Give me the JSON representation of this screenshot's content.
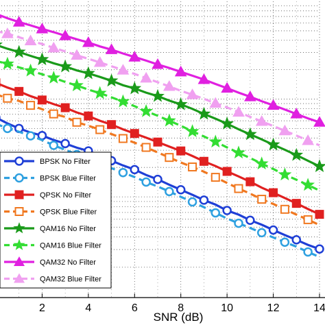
{
  "chart_data": {
    "type": "line",
    "xlabel": "SNR (dB)",
    "ylabel": "",
    "title": "",
    "xlim": [
      0,
      14
    ],
    "ylim": [
      0,
      1
    ],
    "y_scale": "log",
    "grid": true,
    "legend_position": "bottom-left",
    "x_ticks": [
      2,
      4,
      6,
      8,
      10,
      12,
      14
    ],
    "x_tick_labels": [
      "2",
      "4",
      "6",
      "8",
      "10",
      "12",
      "14"
    ],
    "x": [
      0,
      0.5,
      1,
      1.5,
      2,
      2.5,
      3,
      3.5,
      4,
      4.5,
      5,
      5.5,
      6,
      6.5,
      7,
      7.5,
      8,
      8.5,
      9,
      9.5,
      10,
      10.5,
      11,
      11.5,
      12,
      12.5,
      13,
      13.5,
      14
    ],
    "series": [
      {
        "name": "BPSK No Filter",
        "color": "#1f3fd6",
        "line": "solid",
        "marker": "circle",
        "values": [
          0.608,
          0.588,
          0.571,
          0.557,
          0.547,
          0.532,
          0.52,
          0.506,
          0.495,
          0.477,
          0.462,
          0.446,
          0.432,
          0.414,
          0.399,
          0.381,
          0.364,
          0.347,
          0.329,
          0.314,
          0.294,
          0.28,
          0.261,
          0.246,
          0.228,
          0.211,
          0.195,
          0.178,
          0.164
        ]
      },
      {
        "name": "BPSK Blue Filter",
        "color": "#2ea0e0",
        "line": "dashed",
        "marker": "circle",
        "values": [
          0.587,
          0.571,
          0.56,
          0.546,
          0.532,
          0.514,
          0.499,
          0.483,
          0.468,
          0.451,
          0.437,
          0.422,
          0.407,
          0.39,
          0.375,
          0.358,
          0.34,
          0.323,
          0.305,
          0.286,
          0.267,
          0.251,
          0.235,
          0.219,
          0.203,
          0.187,
          0.172,
          0.154,
          0.137
        ]
      },
      {
        "name": "QPSK No Filter",
        "color": "#e02020",
        "line": "solid",
        "marker": "square",
        "values": [
          0.725,
          0.709,
          0.696,
          0.68,
          0.667,
          0.653,
          0.641,
          0.625,
          0.613,
          0.597,
          0.584,
          0.568,
          0.554,
          0.54,
          0.525,
          0.51,
          0.495,
          0.478,
          0.46,
          0.444,
          0.426,
          0.409,
          0.391,
          0.371,
          0.354,
          0.336,
          0.318,
          0.299,
          0.281
        ]
      },
      {
        "name": "QPSK Blue Filter",
        "color": "#f07820",
        "line": "dashed",
        "marker": "square",
        "values": [
          0.686,
          0.673,
          0.664,
          0.649,
          0.636,
          0.62,
          0.61,
          0.592,
          0.58,
          0.567,
          0.552,
          0.537,
          0.523,
          0.507,
          0.49,
          0.473,
          0.456,
          0.441,
          0.425,
          0.406,
          0.387,
          0.368,
          0.351,
          0.332,
          0.316,
          0.298,
          0.28,
          0.263,
          0.245
        ]
      },
      {
        "name": "QAM16 No Filter",
        "color": "#1a9a1a",
        "line": "solid",
        "marker": "star",
        "values": [
          0.853,
          0.84,
          0.829,
          0.816,
          0.804,
          0.791,
          0.78,
          0.767,
          0.757,
          0.745,
          0.732,
          0.717,
          0.706,
          0.692,
          0.68,
          0.665,
          0.652,
          0.637,
          0.62,
          0.604,
          0.587,
          0.568,
          0.551,
          0.534,
          0.516,
          0.499,
          0.481,
          0.462,
          0.443
        ]
      },
      {
        "name": "QAM16 Blue Filter",
        "color": "#33dd33",
        "line": "dashed",
        "marker": "star",
        "values": [
          0.799,
          0.789,
          0.777,
          0.766,
          0.754,
          0.742,
          0.728,
          0.716,
          0.702,
          0.69,
          0.676,
          0.662,
          0.646,
          0.629,
          0.614,
          0.597,
          0.58,
          0.561,
          0.544,
          0.526,
          0.507,
          0.489,
          0.471,
          0.452,
          0.434,
          0.415,
          0.398,
          0.38,
          0.361
        ]
      },
      {
        "name": "QAM32 No Filter",
        "color": "#e020e0",
        "line": "solid",
        "marker": "triangle",
        "values": [
          0.958,
          0.943,
          0.93,
          0.919,
          0.907,
          0.896,
          0.884,
          0.872,
          0.861,
          0.848,
          0.837,
          0.824,
          0.812,
          0.8,
          0.787,
          0.775,
          0.762,
          0.749,
          0.736,
          0.721,
          0.707,
          0.692,
          0.678,
          0.663,
          0.649,
          0.635,
          0.62,
          0.605,
          0.592
        ]
      },
      {
        "name": "QAM32 Blue Filter",
        "color": "#f0a0f0",
        "line": "dashed",
        "marker": "triangle",
        "values": [
          0.9,
          0.891,
          0.879,
          0.867,
          0.856,
          0.843,
          0.831,
          0.818,
          0.806,
          0.794,
          0.781,
          0.768,
          0.755,
          0.741,
          0.727,
          0.713,
          0.698,
          0.685,
          0.671,
          0.656,
          0.642,
          0.626,
          0.61,
          0.595,
          0.579,
          0.563,
          0.547,
          0.53,
          0.514
        ]
      }
    ]
  }
}
